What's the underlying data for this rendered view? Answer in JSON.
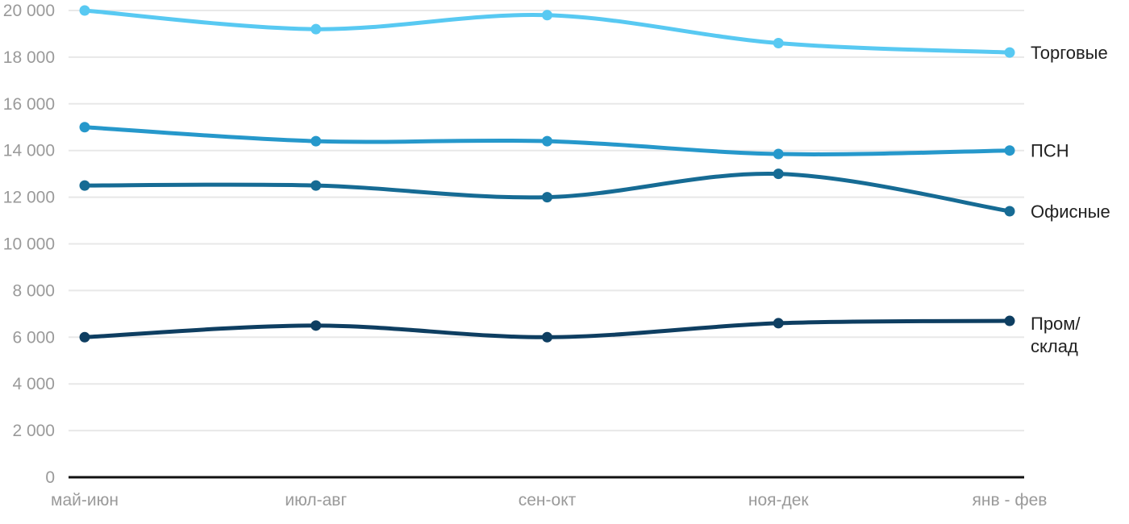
{
  "chart_data": {
    "type": "line",
    "title": "",
    "xlabel": "",
    "ylabel": "",
    "categories": [
      "май-июн",
      "июл-авг",
      "сен-окт",
      "ноя-дек",
      "янв - фев"
    ],
    "series": [
      {
        "name": "Торговые",
        "label_lines": [
          "Торговые"
        ],
        "color": "#58C9F2",
        "values": [
          20000,
          19200,
          19800,
          18600,
          18200
        ]
      },
      {
        "name": "ПСН",
        "label_lines": [
          "ПСН"
        ],
        "color": "#2698CB",
        "values": [
          15000,
          14400,
          14400,
          13850,
          14000
        ]
      },
      {
        "name": "Офисные",
        "label_lines": [
          "Офисные"
        ],
        "color": "#166B94",
        "values": [
          12500,
          12500,
          12000,
          13000,
          11400
        ]
      },
      {
        "name": "Пром/склад",
        "label_lines": [
          "Пром/",
          "склад"
        ],
        "color": "#0E3E61",
        "values": [
          6000,
          6500,
          6000,
          6600,
          6700
        ]
      }
    ],
    "yaxis": {
      "min": 0,
      "max": 20000,
      "step": 2000,
      "tick_labels": [
        "0",
        "2 000",
        "4 000",
        "6 000",
        "8 000",
        "10 000",
        "12 000",
        "14 000",
        "16 000",
        "18 000",
        "20 000"
      ],
      "thousands_separator": " "
    },
    "grid": true,
    "legend_position": "right-of-line-end",
    "colors": {
      "background": "#FFFFFF",
      "gridline": "#E8E8E8",
      "axis_line": "#111111",
      "tick_text": "#9A9A9A",
      "series_label_text": "#212121"
    }
  }
}
